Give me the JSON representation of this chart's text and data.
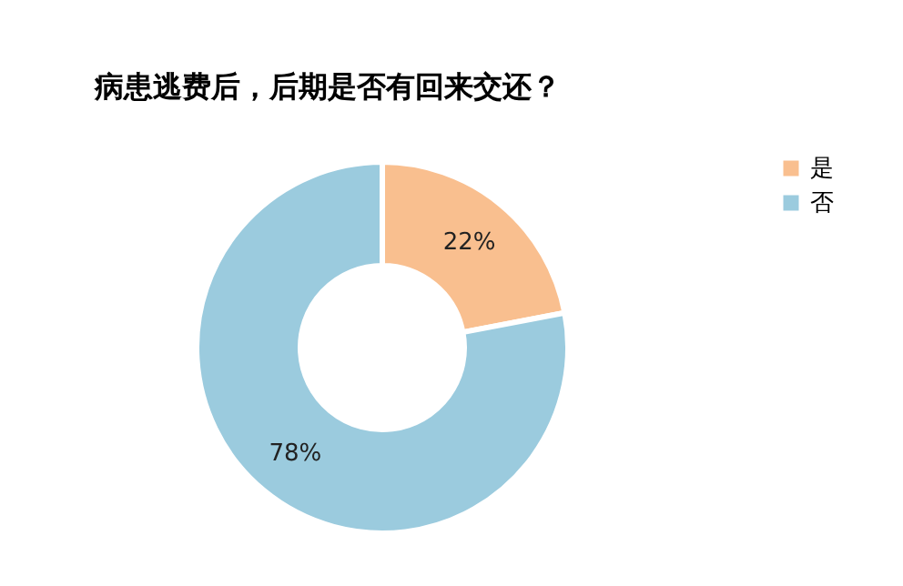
{
  "chart_data": {
    "type": "donut",
    "title": "病患逃费后，后期是否有回来交还？",
    "categories": [
      "是",
      "否"
    ],
    "values": [
      22,
      78
    ],
    "colors": [
      "#f9bf8f",
      "#9bcbde"
    ],
    "value_labels": [
      "22%",
      "78%"
    ],
    "legend": "right"
  }
}
